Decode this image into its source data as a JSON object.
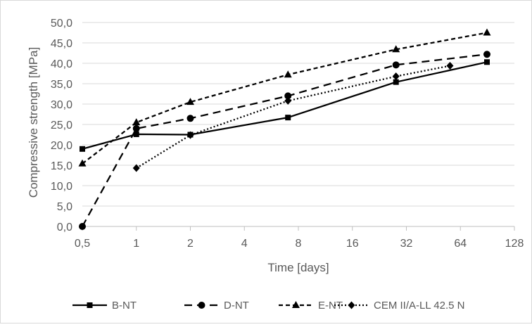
{
  "chart_data": {
    "type": "line",
    "title": "",
    "xlabel": "Time [days]",
    "ylabel": "Compressive strength [MPa]",
    "x_scale": "log2",
    "xlim": [
      0.5,
      128
    ],
    "ylim": [
      0,
      50
    ],
    "x_ticks": [
      0.5,
      1,
      2,
      4,
      8,
      16,
      32,
      64,
      128
    ],
    "x_tick_labels": [
      "0,5",
      "1",
      "2",
      "4",
      "8",
      "16",
      "32",
      "64",
      "128"
    ],
    "y_ticks": [
      0,
      5,
      10,
      15,
      20,
      25,
      30,
      35,
      40,
      45,
      50
    ],
    "y_tick_labels": [
      "0,0",
      "5,0",
      "10,0",
      "15,0",
      "20,0",
      "25,0",
      "30,0",
      "35,0",
      "40,0",
      "45,0",
      "50,0"
    ],
    "grid": "horizontal",
    "legend_position": "bottom",
    "series": [
      {
        "name": "B-NT",
        "marker": "square",
        "line_style": "solid",
        "color": "#000000",
        "points": [
          [
            0.5,
            19.0
          ],
          [
            1,
            22.6
          ],
          [
            2,
            22.5
          ],
          [
            7,
            26.7
          ],
          [
            28,
            35.4
          ],
          [
            90,
            40.3
          ]
        ]
      },
      {
        "name": "D-NT",
        "marker": "circle",
        "line_style": "dashed",
        "color": "#000000",
        "points": [
          [
            0.5,
            0.0
          ],
          [
            1,
            24.0
          ],
          [
            2,
            26.5
          ],
          [
            7,
            32.0
          ],
          [
            28,
            39.6
          ],
          [
            90,
            42.2
          ]
        ]
      },
      {
        "name": "E-NT",
        "marker": "triangle",
        "line_style": "short-dashed",
        "color": "#000000",
        "points": [
          [
            0.5,
            15.4
          ],
          [
            1,
            25.5
          ],
          [
            2,
            30.5
          ],
          [
            7,
            37.2
          ],
          [
            28,
            43.4
          ],
          [
            90,
            47.5
          ]
        ]
      },
      {
        "name": "CEM II/A-LL 42.5 N",
        "marker": "diamond",
        "line_style": "dotted",
        "color": "#000000",
        "points": [
          [
            1,
            14.3
          ],
          [
            2,
            22.4
          ],
          [
            7,
            30.8
          ],
          [
            28,
            36.8
          ],
          [
            56,
            39.4
          ]
        ]
      }
    ]
  }
}
